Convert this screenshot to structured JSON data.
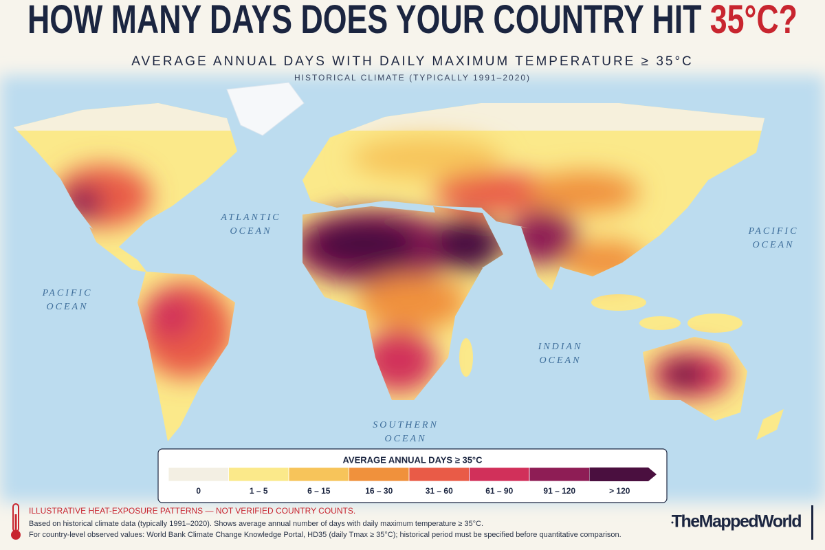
{
  "header": {
    "title": "HOW MANY DAYS DOES YOUR COUNTRY HIT",
    "title_highlight": "35°C?",
    "subtitle": "AVERAGE ANNUAL DAYS WITH DAILY MAXIMUM TEMPERATURE ≥ 35°C",
    "period": "HISTORICAL CLIMATE (TYPICALLY 1991–2020)"
  },
  "map": {
    "ocean_labels": [
      {
        "lines": [
          "ATLANTIC",
          "OCEAN"
        ]
      },
      {
        "lines": [
          "PACIFIC",
          "OCEAN"
        ]
      },
      {
        "lines": [
          "PACIFIC",
          "OCEAN"
        ]
      },
      {
        "lines": [
          "INDIAN",
          "OCEAN"
        ]
      },
      {
        "lines": [
          "SOUTHERN",
          "OCEAN"
        ]
      }
    ]
  },
  "legend": {
    "title": "AVERAGE ANNUAL DAYS ≥ 35°C",
    "classes": [
      {
        "label": "0",
        "color": "#f3efe3"
      },
      {
        "label": "1 – 5",
        "color": "#fbe98a"
      },
      {
        "label": "6 – 15",
        "color": "#f7c45a"
      },
      {
        "label": "16 – 30",
        "color": "#f0913c"
      },
      {
        "label": "31 – 60",
        "color": "#e95b47"
      },
      {
        "label": "61 – 90",
        "color": "#d1305a"
      },
      {
        "label": "91 – 120",
        "color": "#8e1d55"
      },
      {
        "label": "> 120",
        "color": "#4a0f3f"
      }
    ]
  },
  "footer": {
    "warning": "ILLUSTRATIVE HEAT-EXPOSURE PATTERNS — NOT VERIFIED COUNTRY COUNTS.",
    "notes": [
      "Based on historical climate data (typically 1991–2020). Shows average annual number of days with daily maximum temperature ≥ 35°C.",
      "For country-level observed values: World Bank Climate Change Knowledge Portal, HD35 (daily Tmax ≥ 35°C); historical period must  be specified  before quantitative comparison."
    ],
    "brand": "TheMappedWorld"
  }
}
